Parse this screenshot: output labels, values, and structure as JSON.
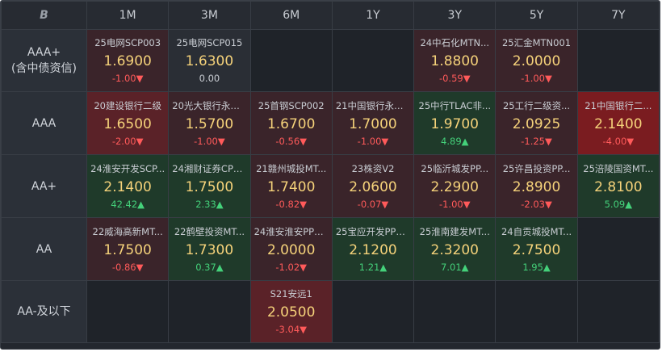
{
  "header": {
    "logo": "B",
    "columns": [
      "1M",
      "3M",
      "6M",
      "1Y",
      "3Y",
      "5Y",
      "7Y"
    ]
  },
  "rows": [
    {
      "label": "AAA+\n(含中债资信)",
      "cells": [
        {
          "bond": "25电网SCP003",
          "yield": "1.6900",
          "change": "-1.00▼",
          "dir": "down",
          "tone": "red1"
        },
        {
          "bond": "25电网SCP015",
          "yield": "1.6300",
          "change": "0.00",
          "dir": "flat",
          "tone": "grey"
        },
        null,
        null,
        {
          "bond": "24中石化MTN...",
          "yield": "1.8800",
          "change": "-0.59▼",
          "dir": "down",
          "tone": "red1"
        },
        {
          "bond": "25汇金MTN001",
          "yield": "2.0000",
          "change": "-1.00▼",
          "dir": "down",
          "tone": "red1"
        },
        null
      ]
    },
    {
      "label": "AAA",
      "cells": [
        {
          "bond": "20建设银行二级",
          "yield": "1.6500",
          "change": "-2.00▼",
          "dir": "down",
          "tone": "red2"
        },
        {
          "bond": "20光大银行永续...",
          "yield": "1.5700",
          "change": "-1.00▼",
          "dir": "down",
          "tone": "red1"
        },
        {
          "bond": "25首钢SCP002",
          "yield": "1.6700",
          "change": "-0.56▼",
          "dir": "down",
          "tone": "red1"
        },
        {
          "bond": "21中国银行永续...",
          "yield": "1.7000",
          "change": "-1.00▼",
          "dir": "down",
          "tone": "red1"
        },
        {
          "bond": "25中行TLAC非...",
          "yield": "1.9700",
          "change": "4.89▲",
          "dir": "up",
          "tone": "green1"
        },
        {
          "bond": "25工行二级资...",
          "yield": "2.0925",
          "change": "-1.25▼",
          "dir": "down",
          "tone": "red1"
        },
        {
          "bond": "21中国银行二...",
          "yield": "2.1400",
          "change": "-4.00▼",
          "dir": "down",
          "tone": "red3"
        }
      ]
    },
    {
      "label": "AA+",
      "cells": [
        {
          "bond": "24淮安开发SCP...",
          "yield": "2.1400",
          "change": "42.42▲",
          "dir": "up",
          "tone": "green1"
        },
        {
          "bond": "24湘财证券CP0...",
          "yield": "1.7500",
          "change": "2.33▲",
          "dir": "up",
          "tone": "green1"
        },
        {
          "bond": "21赣州城投MT...",
          "yield": "1.7400",
          "change": "-0.82▼",
          "dir": "down",
          "tone": "red1"
        },
        {
          "bond": "23株资V2",
          "yield": "2.0600",
          "change": "-0.07▼",
          "dir": "down",
          "tone": "red1"
        },
        {
          "bond": "25临沂城发PP...",
          "yield": "2.2900",
          "change": "-1.00▼",
          "dir": "down",
          "tone": "red1"
        },
        {
          "bond": "25许昌投资PP...",
          "yield": "2.8900",
          "change": "-2.03▼",
          "dir": "down",
          "tone": "red1"
        },
        {
          "bond": "25涪陵国资MT...",
          "yield": "2.8100",
          "change": "5.09▲",
          "dir": "up",
          "tone": "green1"
        }
      ]
    },
    {
      "label": "AA",
      "cells": [
        {
          "bond": "22威海高新MT...",
          "yield": "1.7500",
          "change": "-0.86▼",
          "dir": "down",
          "tone": "red1"
        },
        {
          "bond": "22鹤壁投资MT...",
          "yield": "1.7300",
          "change": "0.37▲",
          "dir": "up",
          "tone": "green1"
        },
        {
          "bond": "24淮安淮安PPN...",
          "yield": "2.0000",
          "change": "-1.02▼",
          "dir": "down",
          "tone": "red1"
        },
        {
          "bond": "25宝应开发PPN...",
          "yield": "2.1200",
          "change": "1.21▲",
          "dir": "up",
          "tone": "green1"
        },
        {
          "bond": "25淮南建发MT...",
          "yield": "2.3200",
          "change": "7.01▲",
          "dir": "up",
          "tone": "green1"
        },
        {
          "bond": "24自贡城投MT...",
          "yield": "2.7500",
          "change": "1.95▲",
          "dir": "up",
          "tone": "green1"
        },
        null
      ]
    },
    {
      "label": "AA-及以下",
      "cells": [
        null,
        null,
        {
          "bond": "S21安远1",
          "yield": "2.0500",
          "change": "-3.04▼",
          "dir": "down",
          "tone": "red2"
        },
        null,
        null,
        null,
        null
      ]
    }
  ]
}
